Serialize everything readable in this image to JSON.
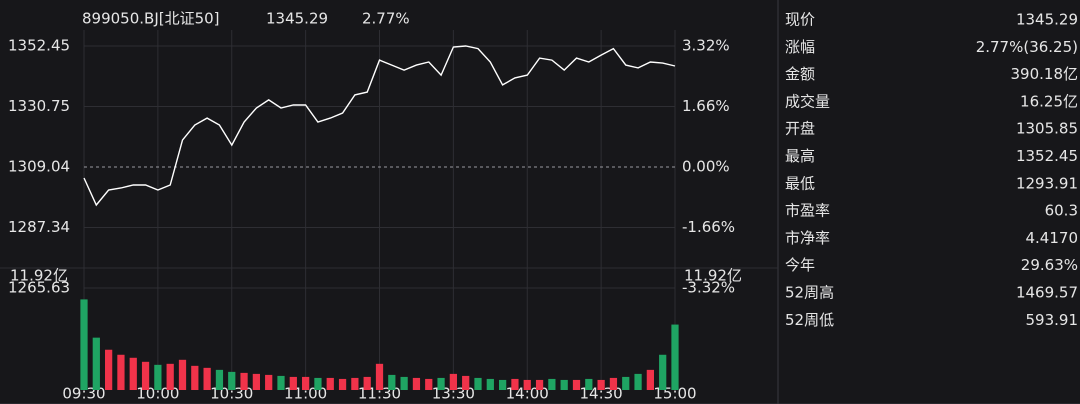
{
  "header": {
    "name": "899050.BJ[北证50]",
    "price": "1345.29",
    "change": "2.77%",
    "color": "#f0334a"
  },
  "chart_data": [
    {
      "type": "line",
      "color": "#ffffff",
      "up_color": "#f0334a",
      "down_color": "#1fa463",
      "flat_color": "#e6e6e6",
      "categories": [
        "09:30",
        null,
        null,
        null,
        null,
        null,
        "10:00",
        null,
        null,
        null,
        null,
        null,
        "10:30",
        null,
        null,
        null,
        null,
        null,
        "11:00",
        null,
        null,
        null,
        null,
        null,
        "11:30",
        null,
        null,
        null,
        null,
        null,
        "13:30",
        null,
        null,
        null,
        null,
        null,
        "14:00",
        null,
        null,
        null,
        null,
        null,
        "14:30",
        null,
        null,
        null,
        null,
        null,
        "15:00"
      ],
      "values": [
        1305.1,
        1295.4,
        1300.8,
        1301.5,
        1302.6,
        1302.6,
        1300.8,
        1302.6,
        1318.7,
        1324.1,
        1326.6,
        1324.1,
        1316.9,
        1325.2,
        1330.2,
        1333.1,
        1330.2,
        1331.3,
        1331.3,
        1325.2,
        1326.6,
        1328.4,
        1334.9,
        1335.9,
        1347.4,
        1345.6,
        1343.8,
        1345.6,
        1346.7,
        1342.0,
        1352.1,
        1352.45,
        1351.5,
        1346.7,
        1338.5,
        1341.0,
        1342.0,
        1348.1,
        1347.4,
        1343.8,
        1348.1,
        1346.7,
        1349.2,
        1351.5,
        1345.6,
        1344.6,
        1346.7,
        1346.3,
        1345.29
      ],
      "ylim": [
        1265.63,
        1352.45
      ],
      "yticks": [
        1352.45,
        1330.75,
        1309.04,
        1287.34,
        1265.63
      ],
      "y2lim": [
        -3.32,
        3.32
      ],
      "y2ticks": [
        {
          "value": 3.32,
          "label": "3.32%"
        },
        {
          "value": 1.66,
          "label": "1.66%"
        },
        {
          "value": 0,
          "label": "0.00%"
        },
        {
          "value": -1.66,
          "label": "-1.66%"
        },
        {
          "value": -3.32,
          "label": "-3.32%"
        }
      ],
      "grid": true
    },
    {
      "type": "bar",
      "up_color": "#f0334a",
      "down_color": "#1fa463",
      "values": [
        9.0,
        5.2,
        4.0,
        3.5,
        3.2,
        2.8,
        2.5,
        2.6,
        3.0,
        2.4,
        2.2,
        2.0,
        1.8,
        1.7,
        1.6,
        1.5,
        1.4,
        1.3,
        1.3,
        1.2,
        1.2,
        1.1,
        1.2,
        1.3,
        2.6,
        1.5,
        1.3,
        1.2,
        1.1,
        1.2,
        1.6,
        1.4,
        1.2,
        1.1,
        1.0,
        1.1,
        1.0,
        1.0,
        1.1,
        1.0,
        1.0,
        1.1,
        1.0,
        1.2,
        1.3,
        1.6,
        2.0,
        3.5,
        6.5
      ],
      "ylim": [
        0,
        11.92
      ],
      "yticks": [
        {
          "value": 11.92,
          "label": "11.92亿"
        }
      ],
      "y2ticks": [
        {
          "value": 11.92,
          "label": "11.92亿"
        }
      ]
    }
  ],
  "panel": {
    "rows": [
      {
        "label": "现价",
        "value": "1345.29",
        "color": "#f0334a"
      },
      {
        "label": "涨幅",
        "value": "2.77%(36.25)",
        "color": "#f0334a"
      },
      {
        "label": "金额",
        "value": "390.18亿",
        "color": "#e6e6e6"
      },
      {
        "label": "成交量",
        "value": "16.25亿",
        "color": "#e6e6e6"
      },
      {
        "label": "开盘",
        "value": "1305.85",
        "color": "#1fa463"
      },
      {
        "label": "最高",
        "value": "1352.45",
        "color": "#f0334a"
      },
      {
        "label": "最低",
        "value": "1293.91",
        "color": "#1fa463"
      },
      {
        "label": "市盈率",
        "value": "60.3",
        "color": "#e6e6e6"
      },
      {
        "label": "市净率",
        "value": "4.4170",
        "color": "#e6e6e6"
      },
      {
        "label": "今年",
        "value": "29.63%",
        "color": "#f0334a"
      },
      {
        "label": "52周高",
        "value": "1469.57",
        "color": "#e6e6e6"
      },
      {
        "label": "52周低",
        "value": "593.91",
        "color": "#e6e6e6"
      }
    ]
  }
}
